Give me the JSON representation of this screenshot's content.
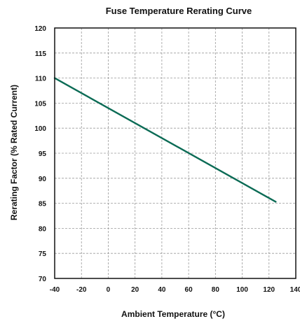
{
  "chart_data": {
    "type": "line",
    "title": "Fuse Temperature Rerating Curve",
    "xlabel": "Ambient Temperature (°C)",
    "ylabel": "Rerating Factor (% Rated Current)",
    "xlim": [
      -40,
      140
    ],
    "ylim": [
      70,
      120
    ],
    "x_ticks": [
      -40,
      -20,
      0,
      20,
      40,
      60,
      80,
      100,
      120,
      140
    ],
    "y_ticks": [
      70,
      75,
      80,
      85,
      90,
      95,
      100,
      105,
      110,
      115,
      120
    ],
    "grid": true,
    "series": [
      {
        "x": [
          -40,
          125
        ],
        "y": [
          110,
          85.3
        ]
      }
    ],
    "colors": {
      "line": "#0b6b55",
      "grid": "#9a9a9a",
      "frame": "#111111"
    }
  }
}
